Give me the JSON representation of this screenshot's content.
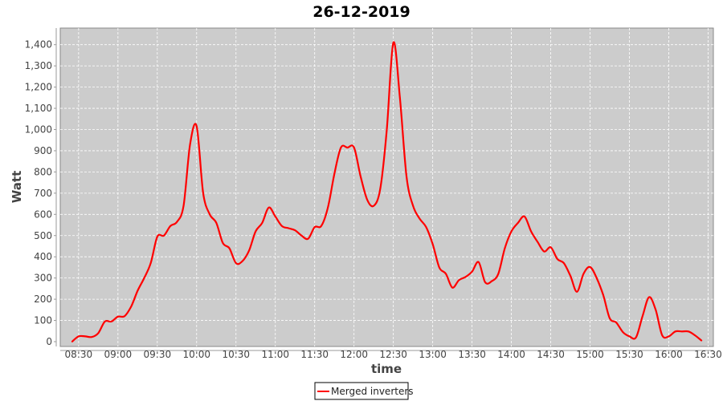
{
  "chart_data": {
    "type": "line",
    "title": "26-12-2019",
    "xlabel": "time",
    "ylabel": "Watt",
    "ylim": [
      0,
      1475
    ],
    "xlim": [
      "08:16",
      "16:34"
    ],
    "grid": true,
    "legend_placement": "bottom",
    "background_color": "#cccccc",
    "series_color": "#ff0000",
    "x_ticks": [
      "08:30",
      "09:00",
      "09:30",
      "10:00",
      "10:30",
      "11:00",
      "11:30",
      "12:00",
      "12:30",
      "13:00",
      "13:30",
      "14:00",
      "14:30",
      "15:00",
      "15:30",
      "16:00",
      "16:30"
    ],
    "y_ticks": [
      0,
      100,
      200,
      300,
      400,
      500,
      600,
      700,
      800,
      900,
      1000,
      1100,
      1200,
      1300,
      1400
    ],
    "y_tick_labels": [
      "0",
      "100",
      "200",
      "300",
      "400",
      "500",
      "600",
      "700",
      "800",
      "900",
      "1,000",
      "1,100",
      "1,200",
      "1,300",
      "1,400"
    ],
    "series": [
      {
        "name": "Merged inverters",
        "x": [
          "08:25",
          "08:30",
          "08:35",
          "08:40",
          "08:45",
          "08:50",
          "08:55",
          "09:00",
          "09:05",
          "09:10",
          "09:15",
          "09:20",
          "09:25",
          "09:30",
          "09:35",
          "09:40",
          "09:45",
          "09:50",
          "09:55",
          "10:00",
          "10:05",
          "10:10",
          "10:15",
          "10:20",
          "10:25",
          "10:30",
          "10:35",
          "10:40",
          "10:45",
          "10:50",
          "10:55",
          "11:00",
          "11:05",
          "11:10",
          "11:15",
          "11:20",
          "11:25",
          "11:30",
          "11:35",
          "11:40",
          "11:45",
          "11:50",
          "11:55",
          "12:00",
          "12:05",
          "12:10",
          "12:15",
          "12:20",
          "12:25",
          "12:30",
          "12:35",
          "12:40",
          "12:45",
          "12:50",
          "12:55",
          "13:00",
          "13:05",
          "13:10",
          "13:15",
          "13:20",
          "13:25",
          "13:30",
          "13:35",
          "13:40",
          "13:45",
          "13:50",
          "13:55",
          "14:00",
          "14:05",
          "14:10",
          "14:15",
          "14:20",
          "14:25",
          "14:30",
          "14:35",
          "14:40",
          "14:45",
          "14:50",
          "14:55",
          "15:00",
          "15:05",
          "15:10",
          "15:15",
          "15:20",
          "15:25",
          "15:30",
          "15:35",
          "15:40",
          "15:45",
          "15:50",
          "15:55",
          "16:00",
          "16:05",
          "16:10",
          "16:15",
          "16:20",
          "16:25"
        ],
        "values": [
          0,
          25,
          25,
          22,
          40,
          95,
          95,
          118,
          120,
          165,
          240,
          300,
          370,
          495,
          500,
          545,
          565,
          640,
          930,
          1015,
          700,
          600,
          560,
          465,
          440,
          370,
          380,
          430,
          520,
          560,
          632,
          590,
          545,
          535,
          525,
          500,
          485,
          540,
          545,
          630,
          790,
          915,
          915,
          915,
          780,
          670,
          640,
          720,
          1000,
          1410,
          1150,
          780,
          640,
          580,
          540,
          460,
          350,
          320,
          255,
          290,
          305,
          330,
          375,
          280,
          285,
          320,
          440,
          520,
          560,
          590,
          520,
          470,
          425,
          445,
          390,
          370,
          310,
          235,
          320,
          352,
          300,
          220,
          110,
          90,
          45,
          25,
          20,
          120,
          210,
          150,
          30,
          25,
          48,
          48,
          48,
          30,
          5
        ]
      }
    ]
  }
}
